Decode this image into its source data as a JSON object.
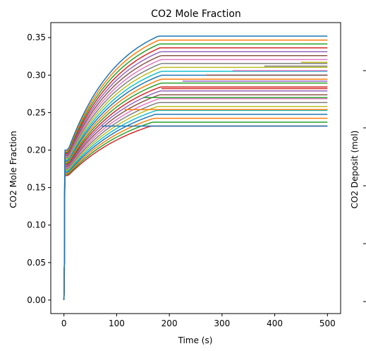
{
  "chart_data": {
    "type": "line",
    "title": "CO2 Mole Fraction",
    "xlabel": "Time (s)",
    "ylabel": "CO2 Mole Fraction",
    "xlim": [
      -25,
      525
    ],
    "ylim": [
      -0.018,
      0.37
    ],
    "xticks": [
      "0",
      "100",
      "200",
      "300",
      "400",
      "500"
    ],
    "yticks": [
      "0.00",
      "0.05",
      "0.10",
      "0.15",
      "0.20",
      "0.25",
      "0.30",
      "0.35"
    ],
    "grid": false,
    "legend": "none",
    "colors": [
      "#1f77b4",
      "#ff7f0e",
      "#2ca02c",
      "#d62728",
      "#9467bd",
      "#8c564b",
      "#e377c2",
      "#7f7f7f",
      "#bcbd22",
      "#17becf"
    ],
    "series_summary": {
      "count": 24,
      "start_fraction_range": [
        0.166,
        0.2
      ],
      "final_fraction_range": [
        0.232,
        0.352
      ],
      "plateau_lines": [
        {
          "y": 0.232,
          "x_start": 72,
          "color": "#1f77b4"
        },
        {
          "y": 0.254,
          "x_start": 115,
          "color": "#ff7f0e"
        },
        {
          "y": 0.27,
          "x_start": 150,
          "color": "#2ca02c"
        },
        {
          "y": 0.282,
          "x_start": 185,
          "color": "#d62728"
        },
        {
          "y": 0.292,
          "x_start": 225,
          "color": "#9467bd"
        },
        {
          "y": 0.3,
          "x_start": 270,
          "color": "#8c564b"
        },
        {
          "y": 0.306,
          "x_start": 320,
          "color": "#e377c2"
        },
        {
          "y": 0.312,
          "x_start": 380,
          "color": "#7f7f7f"
        },
        {
          "y": 0.317,
          "x_start": 450,
          "color": "#bcbd22"
        }
      ]
    }
  },
  "right_panel": {
    "ylabel": "CO2 Deposit (mol)"
  }
}
